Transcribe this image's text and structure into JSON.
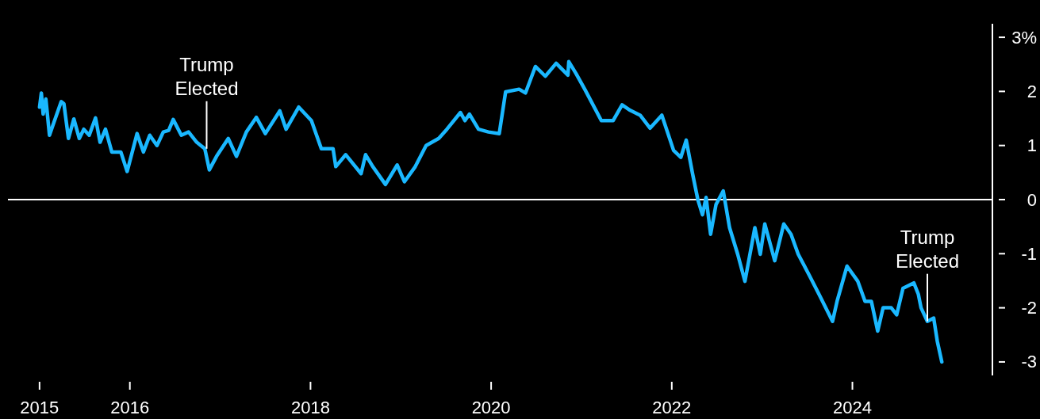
{
  "chart_data": {
    "type": "line",
    "x": [
      2015.0,
      2015.02,
      2015.04,
      2015.07,
      2015.11,
      2015.16,
      2015.24,
      2015.27,
      2015.32,
      2015.38,
      2015.44,
      2015.49,
      2015.55,
      2015.62,
      2015.67,
      2015.73,
      2015.8,
      2015.9,
      2015.97,
      2016.08,
      2016.15,
      2016.22,
      2016.3,
      2016.37,
      2016.43,
      2016.48,
      2016.57,
      2016.65,
      2016.74,
      2016.83,
      2016.88,
      2016.96,
      2017.09,
      2017.18,
      2017.29,
      2017.4,
      2017.5,
      2017.66,
      2017.73,
      2017.87,
      2018.01,
      2018.12,
      2018.25,
      2018.28,
      2018.39,
      2018.56,
      2018.61,
      2018.69,
      2018.83,
      2018.96,
      2019.04,
      2019.16,
      2019.28,
      2019.42,
      2019.51,
      2019.66,
      2019.71,
      2019.76,
      2019.86,
      2019.97,
      2020.09,
      2020.16,
      2020.31,
      2020.38,
      2020.49,
      2020.6,
      2020.72,
      2020.85,
      2020.86,
      2020.94,
      2021.04,
      2021.22,
      2021.35,
      2021.45,
      2021.54,
      2021.65,
      2021.76,
      2021.89,
      2022.02,
      2022.1,
      2022.16,
      2022.23,
      2022.29,
      2022.34,
      2022.38,
      2022.43,
      2022.49,
      2022.57,
      2022.64,
      2022.73,
      2022.81,
      2022.92,
      2022.98,
      2023.03,
      2023.14,
      2023.24,
      2023.32,
      2023.4,
      2023.52,
      2023.63,
      2023.78,
      2023.83,
      2023.94,
      2024.06,
      2024.14,
      2024.21,
      2024.28,
      2024.34,
      2024.43,
      2024.49,
      2024.56,
      2024.68,
      2024.73,
      2024.76,
      2024.83,
      2024.9,
      2024.94,
      2024.99
    ],
    "series": [
      {
        "color": "#1ab8ff",
        "values": [
          1.71,
          1.97,
          1.58,
          1.86,
          1.19,
          1.43,
          1.81,
          1.77,
          1.13,
          1.49,
          1.13,
          1.3,
          1.19,
          1.51,
          1.06,
          1.3,
          0.88,
          0.88,
          0.52,
          1.22,
          0.88,
          1.19,
          1.0,
          1.25,
          1.28,
          1.48,
          1.19,
          1.25,
          1.06,
          0.94,
          0.55,
          0.8,
          1.13,
          0.8,
          1.25,
          1.52,
          1.22,
          1.64,
          1.3,
          1.71,
          1.46,
          0.94,
          0.94,
          0.61,
          0.83,
          0.48,
          0.83,
          0.61,
          0.28,
          0.64,
          0.33,
          0.61,
          1.0,
          1.13,
          1.3,
          1.61,
          1.46,
          1.58,
          1.3,
          1.25,
          1.22,
          1.99,
          2.04,
          1.97,
          2.46,
          2.28,
          2.52,
          2.3,
          2.55,
          2.33,
          2.03,
          1.46,
          1.46,
          1.75,
          1.65,
          1.56,
          1.32,
          1.56,
          0.91,
          0.78,
          1.1,
          0.48,
          -0.01,
          -0.28,
          0.04,
          -0.64,
          -0.09,
          0.16,
          -0.52,
          -1.01,
          -1.51,
          -0.52,
          -1.01,
          -0.45,
          -1.13,
          -0.45,
          -0.64,
          -1.01,
          -1.39,
          -1.75,
          -2.25,
          -1.88,
          -1.23,
          -1.51,
          -1.88,
          -1.88,
          -2.43,
          -2.0,
          -2.0,
          -2.13,
          -1.64,
          -1.54,
          -1.75,
          -2.0,
          -2.25,
          -2.19,
          -2.62,
          -3.0
        ]
      }
    ],
    "xlim": [
      2014.65,
      2025.55
    ],
    "xticks": [
      2015,
      2016,
      2018,
      2020,
      2022,
      2024
    ],
    "ylim": [
      -3.25,
      3.25
    ],
    "yticks": [
      {
        "value": 3,
        "label": "3%"
      },
      2,
      1,
      0,
      -1,
      -2,
      -3
    ],
    "ref_lines": [
      {
        "axis": "y",
        "value": 0,
        "color": "#ffffff"
      }
    ],
    "annotations": [
      {
        "text": "Trump\nElected",
        "x": 2016.85,
        "y": 0.94
      },
      {
        "text": "Trump\nElected",
        "x": 2024.83,
        "y": -2.25
      }
    ],
    "grid": false,
    "legend": false
  }
}
